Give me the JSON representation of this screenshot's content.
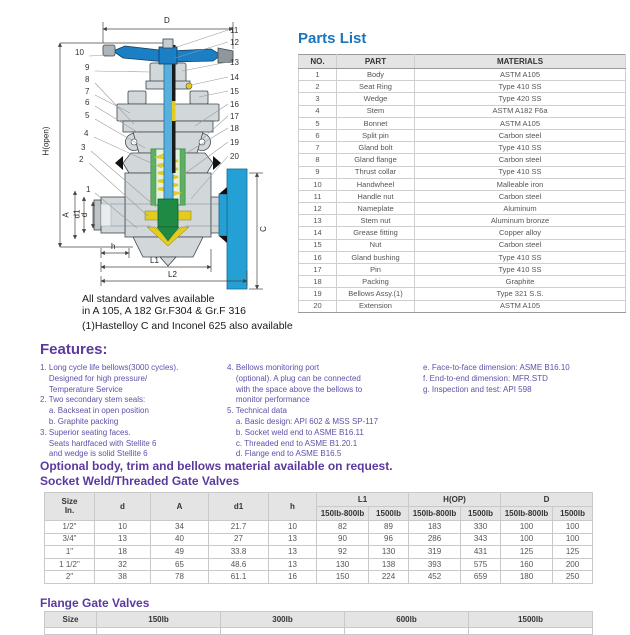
{
  "diagram": {
    "callouts": [
      "1",
      "2",
      "3",
      "4",
      "5",
      "6",
      "7",
      "8",
      "9",
      "10",
      "11",
      "12",
      "13",
      "14",
      "15",
      "16",
      "17",
      "18",
      "19",
      "20"
    ],
    "dims": {
      "D": "D",
      "H": "H(open)",
      "A": "A",
      "d1": "d1",
      "d": "d",
      "h": "h",
      "L1": "L1",
      "L2": "L2",
      "C": "C"
    },
    "caption_line1": "All standard valves available",
    "caption_line2": "in A 105, A 182 Gr.F304 & Gr.F 316",
    "caption_line3": "(1)Hastelloy C and Inconel 625 also available"
  },
  "parts_list": {
    "title": "Parts List",
    "headers": [
      "NO.",
      "PART",
      "MATERIALS"
    ],
    "rows": [
      [
        "1",
        "Body",
        "ASTM A105"
      ],
      [
        "2",
        "Seat Ring",
        "Type 410 SS"
      ],
      [
        "3",
        "Wedge",
        "Type 420 SS"
      ],
      [
        "4",
        "Stem",
        "ASTM A182 F6a"
      ],
      [
        "5",
        "Bonnet",
        "ASTM A105"
      ],
      [
        "6",
        "Split pin",
        "Carbon steel"
      ],
      [
        "7",
        "Gland bolt",
        "Type 410 SS"
      ],
      [
        "8",
        "Gland flange",
        "Carbon steel"
      ],
      [
        "9",
        "Thrust collar",
        "Type 410 SS"
      ],
      [
        "10",
        "Handwheel",
        "Malleable iron"
      ],
      [
        "11",
        "Handle nut",
        "Carbon steel"
      ],
      [
        "12",
        "Nameplate",
        "Aluminum"
      ],
      [
        "13",
        "Stem nut",
        "Aluminum bronze"
      ],
      [
        "14",
        "Grease fitting",
        "Copper alloy"
      ],
      [
        "15",
        "Nut",
        "Carbon steel"
      ],
      [
        "16",
        "Gland bushing",
        "Type 410 SS"
      ],
      [
        "17",
        "Pin",
        "Type 410 SS"
      ],
      [
        "18",
        "Packing",
        "Graphite"
      ],
      [
        "19",
        "Bellows Assy.(1)",
        "Type 321 S.S."
      ],
      [
        "20",
        "Extension",
        "ASTM A105"
      ]
    ]
  },
  "features": {
    "title": "Features:",
    "col1": "1. Long cycle life bellows(3000 cycles).\n    Designed for high pressure/\n    Temperature Service\n2. Two secondary stem seals:\n    a. Backseat in open position\n    b. Graphite packing\n3. Superior seating faces.\n    Seats hardfaced with Stellite 6\n    and wedge is solid Stellite 6",
    "col2": "4. Bellows monitoring port\n    (optional). A plug can be connected\n    with the space above the bellows to\n    monitor performance\n5. Technical data\n    a. Basic design: API 602 & MSS SP-117\n    b. Socket weld end to ASME B16.11\n    c. Threaded end to ASME B1.20.1\n    d. Flange end to ASME B16.5",
    "col3": "e. Face-to-face dimension: ASME B16.10\nf. End-to-end dimension: MFR.STD\ng. Inspection and test: API 598"
  },
  "optional_note": "Optional body, trim and bellows material available on request.",
  "socket_table": {
    "title": "Socket Weld/Threaded Gate Valves",
    "headers": {
      "size": "Size\nIn.",
      "d": "d",
      "A": "A",
      "d1": "d1",
      "h": "h",
      "L1": "L1",
      "HOP": "H(OP)",
      "D": "D",
      "sub_low": "150lb-800lb",
      "sub_high": "1500lb"
    },
    "rows": [
      [
        "1/2\"",
        "10",
        "34",
        "21.7",
        "10",
        "82",
        "89",
        "183",
        "330",
        "100",
        "100"
      ],
      [
        "3/4\"",
        "13",
        "40",
        "27",
        "13",
        "90",
        "96",
        "286",
        "343",
        "100",
        "100"
      ],
      [
        "1\"",
        "18",
        "49",
        "33.8",
        "13",
        "92",
        "130",
        "319",
        "431",
        "125",
        "125"
      ],
      [
        "1 1/2\"",
        "32",
        "65",
        "48.6",
        "13",
        "130",
        "138",
        "393",
        "575",
        "160",
        "200"
      ],
      [
        "2\"",
        "38",
        "78",
        "61.1",
        "16",
        "150",
        "224",
        "452",
        "659",
        "180",
        "250"
      ]
    ]
  },
  "flange_table": {
    "title": "Flange Gate Valves",
    "headers": [
      "Size",
      "150lb",
      "300lb",
      "600lb",
      "1500lb"
    ]
  }
}
